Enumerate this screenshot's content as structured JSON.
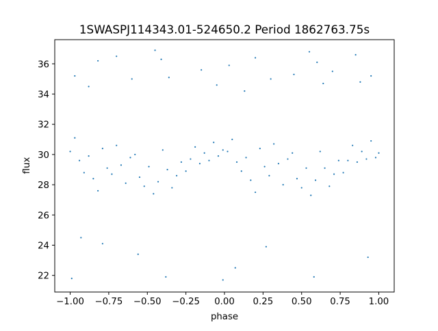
{
  "chart_data": {
    "type": "scatter",
    "title": "1SWASPJ114343.01-524650.2 Period 1862763.75s",
    "xlabel": "phase",
    "ylabel": "flux",
    "xlim": [
      -1.1,
      1.1
    ],
    "ylim": [
      20.9,
      37.6
    ],
    "xticks": [
      {
        "value": -1.0,
        "label": "−1.00"
      },
      {
        "value": -0.75,
        "label": "−0.75"
      },
      {
        "value": -0.5,
        "label": "−0.50"
      },
      {
        "value": -0.25,
        "label": "−0.25"
      },
      {
        "value": 0.0,
        "label": "0.00"
      },
      {
        "value": 0.25,
        "label": "0.25"
      },
      {
        "value": 0.5,
        "label": "0.50"
      },
      {
        "value": 0.75,
        "label": "0.75"
      },
      {
        "value": 1.0,
        "label": "1.00"
      }
    ],
    "yticks": [
      {
        "value": 22,
        "label": "22"
      },
      {
        "value": 24,
        "label": "24"
      },
      {
        "value": 26,
        "label": "26"
      },
      {
        "value": 28,
        "label": "28"
      },
      {
        "value": 30,
        "label": "30"
      },
      {
        "value": 32,
        "label": "32"
      },
      {
        "value": 34,
        "label": "34"
      },
      {
        "value": 36,
        "label": "36"
      }
    ],
    "grid": false,
    "legend": "none",
    "marker_color": "#1f77b4",
    "series": [
      {
        "x": [
          -1.0,
          -0.97,
          -0.94,
          -0.91,
          -0.88,
          -0.85,
          -0.82,
          -0.79,
          -0.76,
          -0.73,
          -0.7,
          -0.67,
          -0.64,
          -0.61,
          -0.58,
          -0.55,
          -0.52,
          -0.49,
          -0.46,
          -0.43,
          -0.4,
          -0.37,
          -0.34,
          -0.31,
          -0.28,
          -0.25,
          -0.22,
          -0.19,
          -0.16,
          -0.13,
          -0.1,
          -0.07,
          -0.04,
          -0.01,
          0.02,
          0.05,
          0.08,
          0.11,
          0.14,
          0.17,
          0.2,
          0.23,
          0.26,
          0.29,
          0.32,
          0.35,
          0.38,
          0.41,
          0.44,
          0.47,
          0.5,
          0.53,
          0.56,
          0.59,
          0.62,
          0.65,
          0.68,
          0.71,
          0.74,
          0.77,
          0.8,
          0.83,
          0.86,
          0.89,
          0.92,
          0.95,
          0.98,
          1.0
        ],
        "y": [
          30.2,
          31.1,
          29.6,
          28.8,
          29.9,
          28.4,
          27.6,
          30.4,
          29.1,
          28.7,
          30.6,
          29.3,
          28.1,
          29.8,
          30.0,
          28.5,
          27.9,
          29.2,
          27.4,
          28.2,
          30.3,
          29.0,
          27.8,
          28.6,
          29.5,
          28.9,
          29.7,
          30.5,
          29.4,
          30.1,
          29.6,
          30.8,
          29.9,
          30.3,
          30.2,
          31.0,
          29.5,
          28.9,
          29.8,
          28.3,
          27.5,
          30.4,
          29.2,
          28.6,
          30.7,
          29.4,
          28.0,
          29.7,
          30.1,
          28.4,
          27.8,
          29.1,
          27.3,
          28.3,
          30.2,
          29.1,
          27.9,
          28.7,
          29.6,
          28.8,
          29.6,
          30.6,
          29.5,
          30.2,
          29.7,
          30.9,
          29.8,
          30.1
        ]
      }
    ],
    "outliers": {
      "x": [
        -0.97,
        -0.88,
        -0.82,
        -0.79,
        -0.7,
        -0.6,
        -0.45,
        -0.41,
        -0.36,
        -0.15,
        -0.05,
        0.03,
        0.13,
        0.2,
        0.3,
        0.45,
        0.55,
        0.6,
        0.64,
        0.7,
        0.85,
        0.88,
        0.95,
        -0.99,
        -0.93,
        -0.56,
        -0.38,
        -0.01,
        0.07,
        0.27,
        0.58,
        0.93
      ],
      "y": [
        35.2,
        34.5,
        36.2,
        24.1,
        36.5,
        35.0,
        36.9,
        36.3,
        35.1,
        35.6,
        34.6,
        35.9,
        34.2,
        36.4,
        35.0,
        35.3,
        36.8,
        36.1,
        34.7,
        35.5,
        36.6,
        34.8,
        35.2,
        21.8,
        24.5,
        23.4,
        21.9,
        21.7,
        22.5,
        23.9,
        21.9,
        23.2
      ]
    }
  }
}
